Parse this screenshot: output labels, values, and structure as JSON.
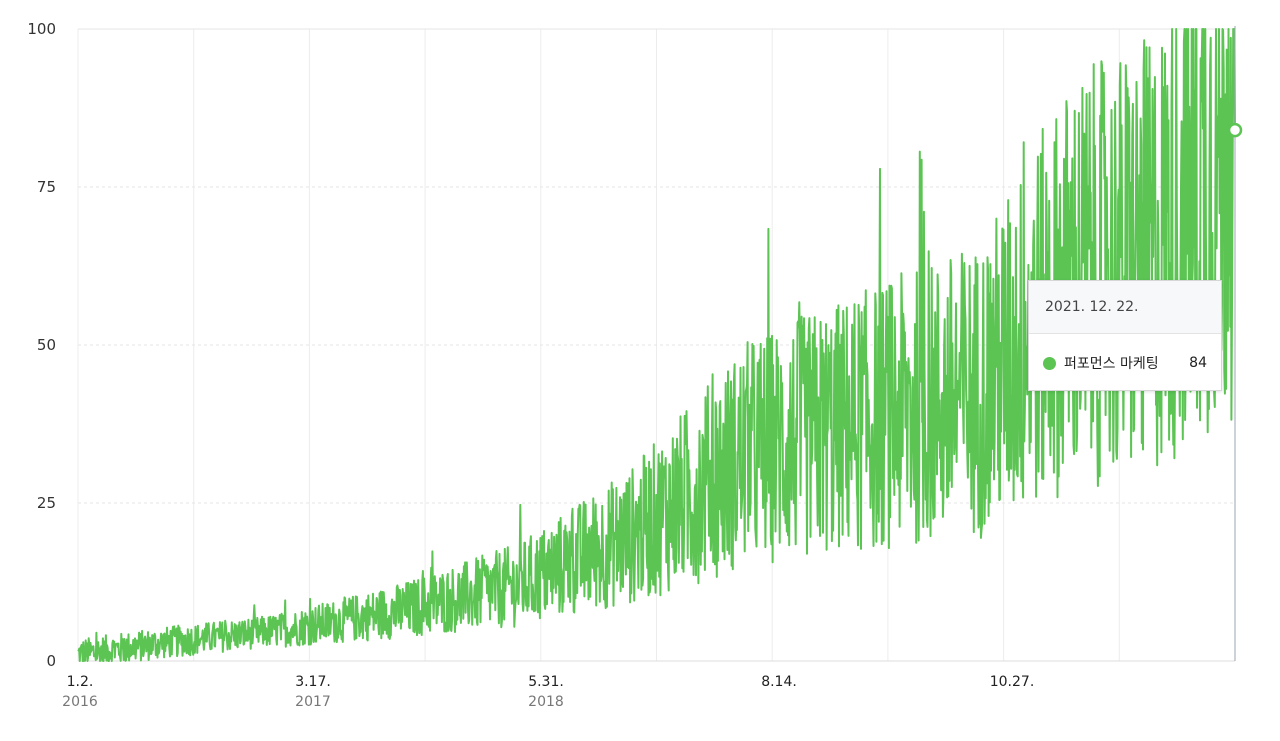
{
  "chart_data": {
    "type": "line",
    "ylim": [
      0,
      100
    ],
    "yticks": [
      0,
      25,
      50,
      75,
      100
    ],
    "xticks": [
      {
        "label": "1.2.",
        "sub": "2016"
      },
      {
        "label": "3.17.",
        "sub": "2017"
      },
      {
        "label": "5.31.",
        "sub": "2018"
      },
      {
        "label": "8.14.",
        "sub": ""
      },
      {
        "label": "10.27.",
        "sub": ""
      }
    ],
    "grid": true,
    "color": "#5bc453",
    "series": [
      {
        "name": "퍼포먼스 마케팅",
        "color": "#5bc453",
        "trend_x": [
          0,
          0.08,
          0.18,
          0.28,
          0.38,
          0.48,
          0.58,
          0.68,
          0.78,
          0.86,
          0.93,
          1.0
        ],
        "trend_y": [
          1,
          3,
          5,
          8,
          12,
          20,
          33,
          38,
          43,
          60,
          64,
          84
        ]
      }
    ],
    "tooltip": {
      "date": "2021. 12. 22.",
      "series": "퍼포먼스 마케팅",
      "value": "84"
    }
  }
}
